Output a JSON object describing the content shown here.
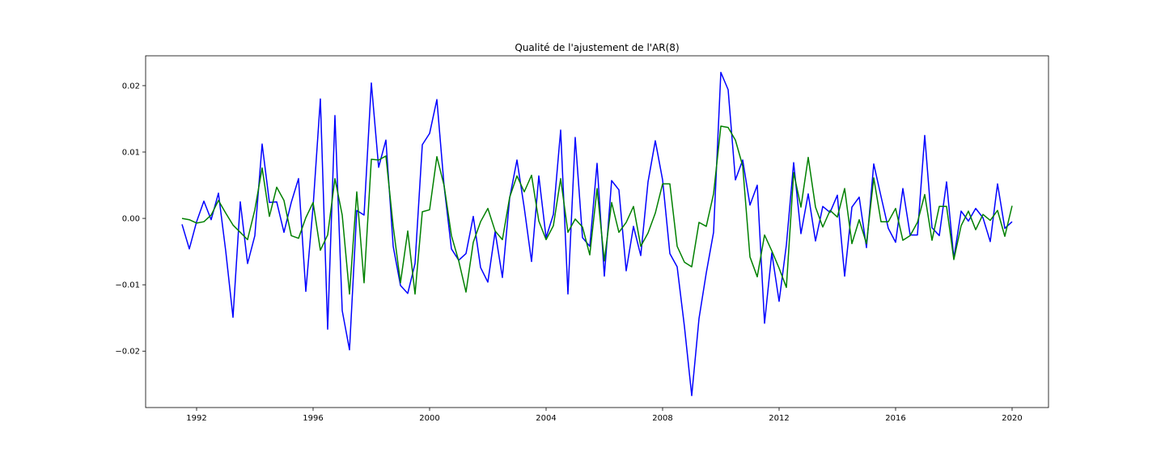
{
  "chart_data": {
    "type": "line",
    "title": "Qualité de l'ajustement de l'AR(8)",
    "xlabel": "",
    "ylabel": "",
    "xlim": [
      1990.25,
      2021.25
    ],
    "ylim": [
      -0.0285,
      0.0245
    ],
    "x_ticks": [
      1992,
      1996,
      2000,
      2004,
      2008,
      2012,
      2016,
      2020
    ],
    "x_tick_labels": [
      "1992",
      "1996",
      "2000",
      "2004",
      "2008",
      "2012",
      "2016",
      "2020"
    ],
    "y_ticks": [
      0.02,
      0.01,
      0.0,
      -0.01,
      -0.02
    ],
    "y_tick_labels": [
      "0.02",
      "0.01",
      "0.00",
      "−0.01",
      "−0.02"
    ],
    "grid": false,
    "legend": "none",
    "x_start": 1991.5,
    "x_step": 0.25,
    "series": [
      {
        "color": "#0000ff",
        "values": [
          -0.0009,
          -0.0046,
          -0.0005,
          0.0026,
          -0.0002,
          0.0038,
          -0.0049,
          -0.0149,
          0.0025,
          -0.0068,
          -0.0026,
          0.0112,
          0.0024,
          0.0025,
          -0.0021,
          0.0024,
          0.006,
          -0.011,
          0.0018,
          0.018,
          -0.0167,
          0.0155,
          -0.0139,
          -0.0198,
          0.0012,
          0.0005,
          0.0204,
          0.0077,
          0.0118,
          -0.0042,
          -0.0101,
          -0.0113,
          -0.0068,
          0.0111,
          0.0128,
          0.0179,
          0.0048,
          -0.0046,
          -0.0063,
          -0.0053,
          0.0003,
          -0.0074,
          -0.0096,
          -0.002,
          -0.0089,
          0.0031,
          0.0088,
          0.0016,
          -0.0065,
          0.0064,
          -0.0029,
          0.0006,
          0.0133,
          -0.0114,
          0.0122,
          -0.0029,
          -0.0042,
          0.0083,
          -0.0087,
          0.0057,
          0.0043,
          -0.0079,
          -0.0012,
          -0.0056,
          0.0055,
          0.0117,
          0.0058,
          -0.0053,
          -0.0073,
          -0.0163,
          -0.0267,
          -0.0151,
          -0.0082,
          -0.0021,
          0.022,
          0.0194,
          0.0058,
          0.0088,
          0.002,
          0.005,
          -0.0158,
          -0.0052,
          -0.0125,
          -0.004,
          0.0084,
          -0.0023,
          0.0037,
          -0.0034,
          0.0018,
          0.0009,
          0.0035,
          -0.0087,
          0.0017,
          0.0032,
          -0.0044,
          0.0082,
          0.0033,
          -0.0015,
          -0.0036,
          0.0045,
          -0.0025,
          -0.0025,
          0.0125,
          -0.0014,
          -0.0026,
          0.0055,
          -0.006,
          0.0011,
          -0.0004,
          0.0015,
          0.0001,
          -0.0035,
          0.0052,
          -0.0015,
          -0.0005
        ]
      },
      {
        "color": "#008000",
        "values": [
          0.0,
          -0.0002,
          -0.0007,
          -0.0005,
          0.0005,
          0.0027,
          0.0008,
          -0.001,
          -0.0021,
          -0.0032,
          0.0013,
          0.0076,
          0.0003,
          0.0047,
          0.0027,
          -0.0026,
          -0.003,
          0.0001,
          0.0024,
          -0.0048,
          -0.0025,
          0.006,
          0.0005,
          -0.0114,
          0.004,
          -0.0097,
          0.0089,
          0.0088,
          0.0094,
          -0.0012,
          -0.0097,
          -0.0019,
          -0.0114,
          0.001,
          0.0013,
          0.0093,
          0.0049,
          -0.0026,
          -0.0064,
          -0.0111,
          -0.0036,
          -0.0005,
          0.0015,
          -0.0019,
          -0.0032,
          0.0032,
          0.0064,
          0.004,
          0.0065,
          -0.0004,
          -0.0032,
          -0.0011,
          0.006,
          -0.0021,
          -0.0001,
          -0.0013,
          -0.0055,
          0.0045,
          -0.0064,
          0.0024,
          -0.0021,
          -0.0006,
          0.0018,
          -0.0042,
          -0.0022,
          0.0008,
          0.0052,
          0.0052,
          -0.0042,
          -0.0066,
          -0.0073,
          -0.0006,
          -0.0012,
          0.0037,
          0.0139,
          0.0137,
          0.0118,
          0.0079,
          -0.0058,
          -0.0088,
          -0.0025,
          -0.0049,
          -0.0075,
          -0.0104,
          0.0069,
          0.0017,
          0.0092,
          0.0017,
          -0.0013,
          0.0012,
          0.0002,
          0.0045,
          -0.0038,
          -0.0002,
          -0.0038,
          0.0061,
          -0.0005,
          -0.0005,
          0.0015,
          -0.0033,
          -0.0026,
          -0.0006,
          0.0036,
          -0.0033,
          0.0018,
          0.0018,
          -0.0062,
          -0.0011,
          0.0011,
          -0.0017,
          0.0006,
          -0.0003,
          0.0012,
          -0.0027,
          0.0019
        ]
      }
    ]
  }
}
